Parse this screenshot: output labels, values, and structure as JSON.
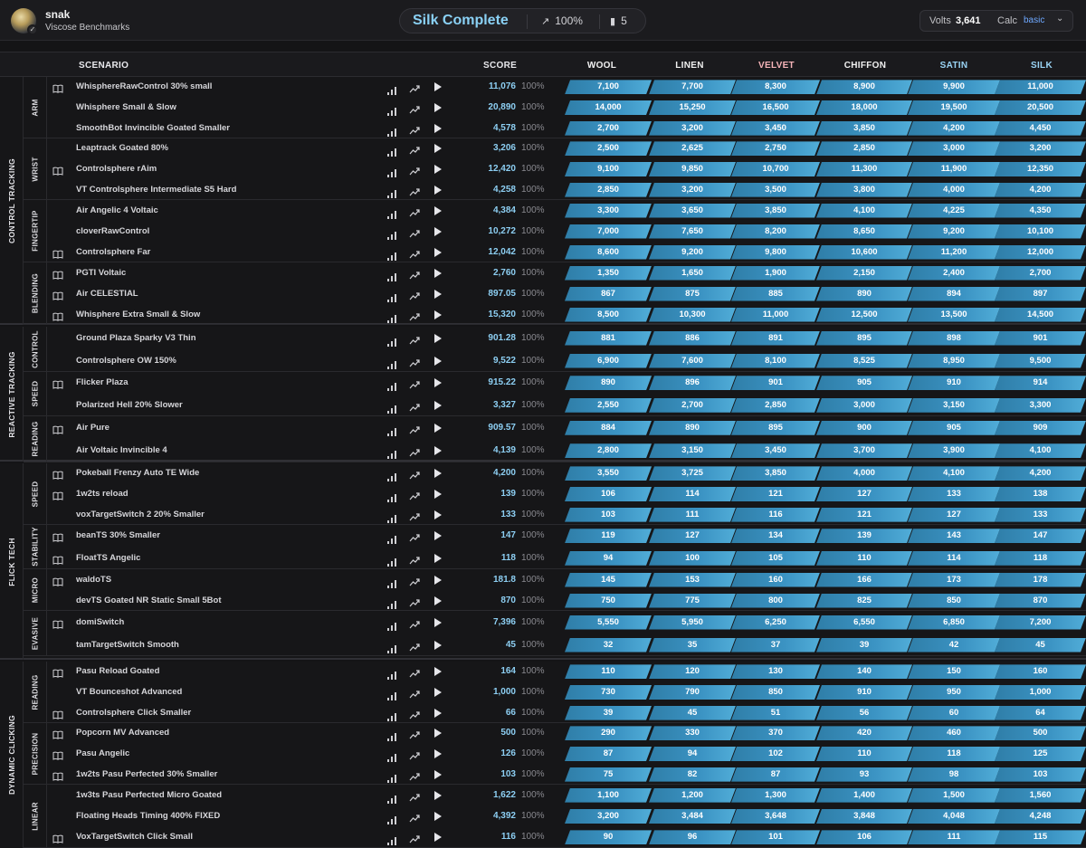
{
  "user": {
    "name": "snak",
    "subtitle": "Viscose Benchmarks"
  },
  "rank_pill": {
    "title": "Silk Complete",
    "progress": "100%",
    "count": "5"
  },
  "right": {
    "volts_label": "Volts",
    "volts_value": "3,641",
    "calc_label": "Calc",
    "calc_value": "basic"
  },
  "columns": {
    "scenario": "SCENARIO",
    "score": "SCORE",
    "ranks": [
      {
        "label": "WOOL",
        "color": "#f0f0f0"
      },
      {
        "label": "LINEN",
        "color": "#f0f0f0"
      },
      {
        "label": "VELVET",
        "color": "#f5b3b8"
      },
      {
        "label": "CHIFFON",
        "color": "#f0f0f0"
      },
      {
        "label": "SATIN",
        "color": "#9ad4f5"
      },
      {
        "label": "SILK",
        "color": "#9ad4f5"
      }
    ]
  },
  "sections": [
    {
      "category": "CONTROL TRACKING",
      "subs": [
        {
          "name": "ARM",
          "rows": [
            {
              "book": true,
              "name": "WhisphereRawControl 30% small",
              "score": "11,076",
              "pct": "100%",
              "ranks": [
                "7,100",
                "7,700",
                "8,300",
                "8,900",
                "9,900",
                "11,000"
              ]
            },
            {
              "book": false,
              "name": "Whisphere Small & Slow",
              "score": "20,890",
              "pct": "100%",
              "ranks": [
                "14,000",
                "15,250",
                "16,500",
                "18,000",
                "19,500",
                "20,500"
              ]
            },
            {
              "book": false,
              "name": "SmoothBot Invincible Goated Smaller",
              "score": "4,578",
              "pct": "100%",
              "ranks": [
                "2,700",
                "3,200",
                "3,450",
                "3,850",
                "4,200",
                "4,450"
              ]
            }
          ]
        },
        {
          "name": "WRIST",
          "rows": [
            {
              "book": false,
              "name": "Leaptrack Goated 80%",
              "score": "3,206",
              "pct": "100%",
              "ranks": [
                "2,500",
                "2,625",
                "2,750",
                "2,850",
                "3,000",
                "3,200"
              ]
            },
            {
              "book": true,
              "name": "Controlsphere rAim",
              "score": "12,420",
              "pct": "100%",
              "ranks": [
                "9,100",
                "9,850",
                "10,700",
                "11,300",
                "11,900",
                "12,350"
              ]
            },
            {
              "book": false,
              "name": "VT Controlsphere Intermediate S5 Hard",
              "score": "4,258",
              "pct": "100%",
              "ranks": [
                "2,850",
                "3,200",
                "3,500",
                "3,800",
                "4,000",
                "4,200"
              ]
            }
          ]
        },
        {
          "name": "FINGERTIP",
          "rows": [
            {
              "book": false,
              "name": "Air Angelic 4 Voltaic",
              "score": "4,384",
              "pct": "100%",
              "ranks": [
                "3,300",
                "3,650",
                "3,850",
                "4,100",
                "4,225",
                "4,350"
              ]
            },
            {
              "book": false,
              "name": "cloverRawControl",
              "score": "10,272",
              "pct": "100%",
              "ranks": [
                "7,000",
                "7,650",
                "8,200",
                "8,650",
                "9,200",
                "10,100"
              ]
            },
            {
              "book": true,
              "name": "Controlsphere Far",
              "score": "12,042",
              "pct": "100%",
              "ranks": [
                "8,600",
                "9,200",
                "9,800",
                "10,600",
                "11,200",
                "12,000"
              ]
            }
          ]
        },
        {
          "name": "BLENDING",
          "rows": [
            {
              "book": true,
              "name": "PGTI Voltaic",
              "score": "2,760",
              "pct": "100%",
              "ranks": [
                "1,350",
                "1,650",
                "1,900",
                "2,150",
                "2,400",
                "2,700"
              ]
            },
            {
              "book": true,
              "name": "Air CELESTIAL",
              "score": "897.05",
              "pct": "100%",
              "ranks": [
                "867",
                "875",
                "885",
                "890",
                "894",
                "897"
              ]
            },
            {
              "book": true,
              "name": "Whisphere Extra Small & Slow",
              "score": "15,320",
              "pct": "100%",
              "ranks": [
                "8,500",
                "10,300",
                "11,000",
                "12,500",
                "13,500",
                "14,500"
              ]
            }
          ]
        }
      ]
    },
    {
      "category": "REACTIVE TRACKING",
      "subs": [
        {
          "name": "CONTROL",
          "rows": [
            {
              "book": false,
              "name": "Ground Plaza Sparky V3 Thin",
              "score": "901.28",
              "pct": "100%",
              "ranks": [
                "881",
                "886",
                "891",
                "895",
                "898",
                "901"
              ]
            },
            {
              "book": false,
              "name": "Controlsphere OW 150%",
              "score": "9,522",
              "pct": "100%",
              "ranks": [
                "6,900",
                "7,600",
                "8,100",
                "8,525",
                "8,950",
                "9,500"
              ]
            }
          ]
        },
        {
          "name": "SPEED",
          "rows": [
            {
              "book": true,
              "name": "Flicker Plaza",
              "score": "915.22",
              "pct": "100%",
              "ranks": [
                "890",
                "896",
                "901",
                "905",
                "910",
                "914"
              ]
            },
            {
              "book": false,
              "name": "Polarized Hell 20% Slower",
              "score": "3,327",
              "pct": "100%",
              "ranks": [
                "2,550",
                "2,700",
                "2,850",
                "3,000",
                "3,150",
                "3,300"
              ]
            }
          ]
        },
        {
          "name": "READING",
          "rows": [
            {
              "book": true,
              "name": "Air Pure",
              "score": "909.57",
              "pct": "100%",
              "ranks": [
                "884",
                "890",
                "895",
                "900",
                "905",
                "909"
              ]
            },
            {
              "book": false,
              "name": "Air Voltaic Invincible 4",
              "score": "4,139",
              "pct": "100%",
              "ranks": [
                "2,800",
                "3,150",
                "3,450",
                "3,700",
                "3,900",
                "4,100"
              ]
            }
          ]
        }
      ]
    },
    {
      "category": "FLICK TECH",
      "subs": [
        {
          "name": "SPEED",
          "rows": [
            {
              "book": true,
              "name": "Pokeball Frenzy Auto TE Wide",
              "score": "4,200",
              "pct": "100%",
              "ranks": [
                "3,550",
                "3,725",
                "3,850",
                "4,000",
                "4,100",
                "4,200"
              ]
            },
            {
              "book": true,
              "name": "1w2ts reload",
              "score": "139",
              "pct": "100%",
              "ranks": [
                "106",
                "114",
                "121",
                "127",
                "133",
                "138"
              ]
            },
            {
              "book": false,
              "name": "voxTargetSwitch 2 20% Smaller",
              "score": "133",
              "pct": "100%",
              "ranks": [
                "103",
                "111",
                "116",
                "121",
                "127",
                "133"
              ]
            }
          ]
        },
        {
          "name": "STABILITY",
          "rows": [
            {
              "book": true,
              "name": "beanTS 30% Smaller",
              "score": "147",
              "pct": "100%",
              "ranks": [
                "119",
                "127",
                "134",
                "139",
                "143",
                "147"
              ]
            },
            {
              "book": true,
              "name": "FloatTS Angelic",
              "score": "118",
              "pct": "100%",
              "ranks": [
                "94",
                "100",
                "105",
                "110",
                "114",
                "118"
              ]
            }
          ]
        },
        {
          "name": "MICRO",
          "rows": [
            {
              "book": true,
              "name": "waldoTS",
              "score": "181.8",
              "pct": "100%",
              "ranks": [
                "145",
                "153",
                "160",
                "166",
                "173",
                "178"
              ]
            },
            {
              "book": false,
              "name": "devTS Goated NR Static Small 5Bot",
              "score": "870",
              "pct": "100%",
              "ranks": [
                "750",
                "775",
                "800",
                "825",
                "850",
                "870"
              ]
            }
          ]
        },
        {
          "name": "EVASIVE",
          "rows": [
            {
              "book": true,
              "name": "domiSwitch",
              "score": "7,396",
              "pct": "100%",
              "ranks": [
                "5,550",
                "5,950",
                "6,250",
                "6,550",
                "6,850",
                "7,200"
              ]
            },
            {
              "book": false,
              "name": "tamTargetSwitch Smooth",
              "score": "45",
              "pct": "100%",
              "ranks": [
                "32",
                "35",
                "37",
                "39",
                "42",
                "45"
              ]
            }
          ]
        }
      ]
    },
    {
      "category": "DYNAMIC CLICKING",
      "subs": [
        {
          "name": "READING",
          "rows": [
            {
              "book": true,
              "name": "Pasu Reload Goated",
              "score": "164",
              "pct": "100%",
              "ranks": [
                "110",
                "120",
                "130",
                "140",
                "150",
                "160"
              ]
            },
            {
              "book": false,
              "name": "VT Bounceshot Advanced",
              "score": "1,000",
              "pct": "100%",
              "ranks": [
                "730",
                "790",
                "850",
                "910",
                "950",
                "1,000"
              ]
            },
            {
              "book": true,
              "name": "Controlsphere Click Smaller",
              "score": "66",
              "pct": "100%",
              "ranks": [
                "39",
                "45",
                "51",
                "56",
                "60",
                "64"
              ]
            }
          ]
        },
        {
          "name": "PRECISION",
          "rows": [
            {
              "book": true,
              "name": "Popcorn MV Advanced",
              "score": "500",
              "pct": "100%",
              "ranks": [
                "290",
                "330",
                "370",
                "420",
                "460",
                "500"
              ]
            },
            {
              "book": true,
              "name": "Pasu Angelic",
              "score": "126",
              "pct": "100%",
              "ranks": [
                "87",
                "94",
                "102",
                "110",
                "118",
                "125"
              ]
            },
            {
              "book": true,
              "name": "1w2ts Pasu Perfected 30% Smaller",
              "score": "103",
              "pct": "100%",
              "ranks": [
                "75",
                "82",
                "87",
                "93",
                "98",
                "103"
              ]
            }
          ]
        },
        {
          "name": "LINEAR",
          "rows": [
            {
              "book": false,
              "name": "1w3ts Pasu Perfected Micro Goated",
              "score": "1,622",
              "pct": "100%",
              "ranks": [
                "1,100",
                "1,200",
                "1,300",
                "1,400",
                "1,500",
                "1,560"
              ]
            },
            {
              "book": false,
              "name": "Floating Heads Timing 400% FIXED",
              "score": "4,392",
              "pct": "100%",
              "ranks": [
                "3,200",
                "3,484",
                "3,648",
                "3,848",
                "4,048",
                "4,248"
              ]
            },
            {
              "book": true,
              "name": "VoxTargetSwitch Click Small",
              "score": "116",
              "pct": "100%",
              "ranks": [
                "90",
                "96",
                "101",
                "106",
                "111",
                "115"
              ]
            }
          ]
        }
      ]
    }
  ]
}
